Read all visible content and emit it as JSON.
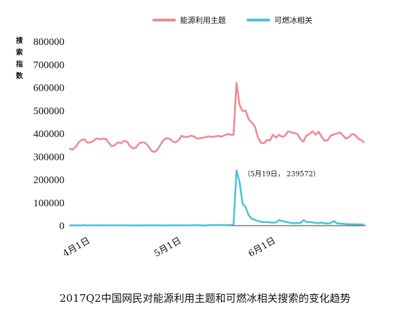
{
  "caption": "2017Q2中国网民对能源利用主题和可燃冰相关搜索的变化趋势",
  "chart_data": {
    "type": "line",
    "title": "",
    "ylabel": "搜索指数",
    "ylabel_chars": [
      "搜",
      "索",
      "指",
      "数"
    ],
    "ylim": [
      0,
      800000
    ],
    "yticks": [
      {
        "value": 0,
        "label": "0"
      },
      {
        "value": 100000,
        "label": "100000"
      },
      {
        "value": 200000,
        "label": "200000"
      },
      {
        "value": 300000,
        "label": "300000"
      },
      {
        "value": 400000,
        "label": "400000"
      },
      {
        "value": 500000,
        "label": "500000"
      },
      {
        "value": 600000,
        "label": "600000"
      },
      {
        "value": 700000,
        "label": "700000"
      },
      {
        "value": 800000,
        "label": "800000"
      }
    ],
    "x_start_date": "2017-03-25",
    "x_end_date": "2017-06-30",
    "xticks": [
      {
        "date": "2017-04-01",
        "label": "4月1日"
      },
      {
        "date": "2017-05-01",
        "label": "5月1日"
      },
      {
        "date": "2017-06-01",
        "label": "6月1日"
      }
    ],
    "legend_position": "top-right",
    "series": [
      {
        "name": "能源利用主题",
        "color": "#ee8a92",
        "points": [
          [
            "2017-03-25",
            335000
          ],
          [
            "2017-03-26",
            330000
          ],
          [
            "2017-03-27",
            340000
          ],
          [
            "2017-03-28",
            360000
          ],
          [
            "2017-03-29",
            372000
          ],
          [
            "2017-03-30",
            375000
          ],
          [
            "2017-03-31",
            360000
          ],
          [
            "2017-04-01",
            362000
          ],
          [
            "2017-04-02",
            368000
          ],
          [
            "2017-04-03",
            380000
          ],
          [
            "2017-04-04",
            375000
          ],
          [
            "2017-04-05",
            378000
          ],
          [
            "2017-04-06",
            377000
          ],
          [
            "2017-04-07",
            360000
          ],
          [
            "2017-04-08",
            345000
          ],
          [
            "2017-04-09",
            350000
          ],
          [
            "2017-04-10",
            362000
          ],
          [
            "2017-04-11",
            358000
          ],
          [
            "2017-04-12",
            368000
          ],
          [
            "2017-04-13",
            365000
          ],
          [
            "2017-04-14",
            345000
          ],
          [
            "2017-04-15",
            335000
          ],
          [
            "2017-04-16",
            340000
          ],
          [
            "2017-04-17",
            358000
          ],
          [
            "2017-04-18",
            362000
          ],
          [
            "2017-04-19",
            360000
          ],
          [
            "2017-04-20",
            345000
          ],
          [
            "2017-04-21",
            325000
          ],
          [
            "2017-04-22",
            320000
          ],
          [
            "2017-04-23",
            330000
          ],
          [
            "2017-04-24",
            352000
          ],
          [
            "2017-04-25",
            372000
          ],
          [
            "2017-04-26",
            380000
          ],
          [
            "2017-04-27",
            378000
          ],
          [
            "2017-04-28",
            365000
          ],
          [
            "2017-04-29",
            362000
          ],
          [
            "2017-04-30",
            372000
          ],
          [
            "2017-05-01",
            390000
          ],
          [
            "2017-05-02",
            385000
          ],
          [
            "2017-05-03",
            386000
          ],
          [
            "2017-05-04",
            390000
          ],
          [
            "2017-05-05",
            388000
          ],
          [
            "2017-05-06",
            378000
          ],
          [
            "2017-05-07",
            380000
          ],
          [
            "2017-05-08",
            382000
          ],
          [
            "2017-05-09",
            385000
          ],
          [
            "2017-05-10",
            388000
          ],
          [
            "2017-05-11",
            385000
          ],
          [
            "2017-05-12",
            388000
          ],
          [
            "2017-05-13",
            390000
          ],
          [
            "2017-05-14",
            387000
          ],
          [
            "2017-05-15",
            392000
          ],
          [
            "2017-05-16",
            398000
          ],
          [
            "2017-05-17",
            395000
          ],
          [
            "2017-05-18",
            395000
          ],
          [
            "2017-05-19",
            620000
          ],
          [
            "2017-05-20",
            525000
          ],
          [
            "2017-05-21",
            498000
          ],
          [
            "2017-05-22",
            500000
          ],
          [
            "2017-05-23",
            462000
          ],
          [
            "2017-05-24",
            448000
          ],
          [
            "2017-05-25",
            432000
          ],
          [
            "2017-05-26",
            385000
          ],
          [
            "2017-05-27",
            360000
          ],
          [
            "2017-05-28",
            358000
          ],
          [
            "2017-05-29",
            372000
          ],
          [
            "2017-05-30",
            370000
          ],
          [
            "2017-05-31",
            395000
          ],
          [
            "2017-06-01",
            382000
          ],
          [
            "2017-06-02",
            395000
          ],
          [
            "2017-06-03",
            385000
          ],
          [
            "2017-06-04",
            392000
          ],
          [
            "2017-06-05",
            410000
          ],
          [
            "2017-06-06",
            405000
          ],
          [
            "2017-06-07",
            402000
          ],
          [
            "2017-06-08",
            398000
          ],
          [
            "2017-06-09",
            375000
          ],
          [
            "2017-06-10",
            365000
          ],
          [
            "2017-06-11",
            392000
          ],
          [
            "2017-06-12",
            398000
          ],
          [
            "2017-06-13",
            410000
          ],
          [
            "2017-06-14",
            395000
          ],
          [
            "2017-06-15",
            408000
          ],
          [
            "2017-06-16",
            385000
          ],
          [
            "2017-06-17",
            368000
          ],
          [
            "2017-06-18",
            372000
          ],
          [
            "2017-06-19",
            392000
          ],
          [
            "2017-06-20",
            396000
          ],
          [
            "2017-06-21",
            400000
          ],
          [
            "2017-06-22",
            405000
          ],
          [
            "2017-06-23",
            392000
          ],
          [
            "2017-06-24",
            378000
          ],
          [
            "2017-06-25",
            385000
          ],
          [
            "2017-06-26",
            398000
          ],
          [
            "2017-06-27",
            394000
          ],
          [
            "2017-06-28",
            378000
          ],
          [
            "2017-06-29",
            372000
          ],
          [
            "2017-06-30",
            360000
          ]
        ]
      },
      {
        "name": "可燃冰相关",
        "color": "#4cc3d9",
        "points": [
          [
            "2017-03-25",
            1000
          ],
          [
            "2017-03-26",
            1000
          ],
          [
            "2017-03-27",
            1200
          ],
          [
            "2017-03-28",
            1000
          ],
          [
            "2017-03-29",
            1500
          ],
          [
            "2017-03-30",
            2000
          ],
          [
            "2017-03-31",
            500
          ],
          [
            "2017-04-01",
            1500
          ],
          [
            "2017-04-05",
            1200
          ],
          [
            "2017-04-10",
            1500
          ],
          [
            "2017-04-15",
            1000
          ],
          [
            "2017-04-20",
            1200
          ],
          [
            "2017-04-25",
            1000
          ],
          [
            "2017-04-30",
            1500
          ],
          [
            "2017-05-03",
            1000
          ],
          [
            "2017-05-06",
            2000
          ],
          [
            "2017-05-08",
            500
          ],
          [
            "2017-05-10",
            2000
          ],
          [
            "2017-05-14",
            2500
          ],
          [
            "2017-05-17",
            3000
          ],
          [
            "2017-05-18",
            5000
          ],
          [
            "2017-05-19",
            239572
          ],
          [
            "2017-05-20",
            190000
          ],
          [
            "2017-05-21",
            95000
          ],
          [
            "2017-05-22",
            80000
          ],
          [
            "2017-05-23",
            45000
          ],
          [
            "2017-05-24",
            30000
          ],
          [
            "2017-05-25",
            25000
          ],
          [
            "2017-05-26",
            20000
          ],
          [
            "2017-05-27",
            17000
          ],
          [
            "2017-05-28",
            15000
          ],
          [
            "2017-05-29",
            16000
          ],
          [
            "2017-05-30",
            14000
          ],
          [
            "2017-05-31",
            13000
          ],
          [
            "2017-06-01",
            14000
          ],
          [
            "2017-06-02",
            24000
          ],
          [
            "2017-06-03",
            20000
          ],
          [
            "2017-06-04",
            17000
          ],
          [
            "2017-06-05",
            14000
          ],
          [
            "2017-06-06",
            12000
          ],
          [
            "2017-06-07",
            11000
          ],
          [
            "2017-06-08",
            12000
          ],
          [
            "2017-06-09",
            11000
          ],
          [
            "2017-06-10",
            24000
          ],
          [
            "2017-06-11",
            16000
          ],
          [
            "2017-06-12",
            15000
          ],
          [
            "2017-06-13",
            14000
          ],
          [
            "2017-06-14",
            12000
          ],
          [
            "2017-06-15",
            11000
          ],
          [
            "2017-06-16",
            13000
          ],
          [
            "2017-06-17",
            10000
          ],
          [
            "2017-06-18",
            9000
          ],
          [
            "2017-06-19",
            12000
          ],
          [
            "2017-06-20",
            20000
          ],
          [
            "2017-06-21",
            10000
          ],
          [
            "2017-06-22",
            9000
          ],
          [
            "2017-06-23",
            8000
          ],
          [
            "2017-06-24",
            7000
          ],
          [
            "2017-06-25",
            6000
          ],
          [
            "2017-06-26",
            6500
          ],
          [
            "2017-06-27",
            5000
          ],
          [
            "2017-06-28",
            5500
          ],
          [
            "2017-06-29",
            5000
          ],
          [
            "2017-06-30",
            4000
          ]
        ]
      }
    ],
    "annotations": [
      {
        "text": "（5月19日，  239572）",
        "date": "2017-05-19",
        "value": 239572
      }
    ]
  }
}
